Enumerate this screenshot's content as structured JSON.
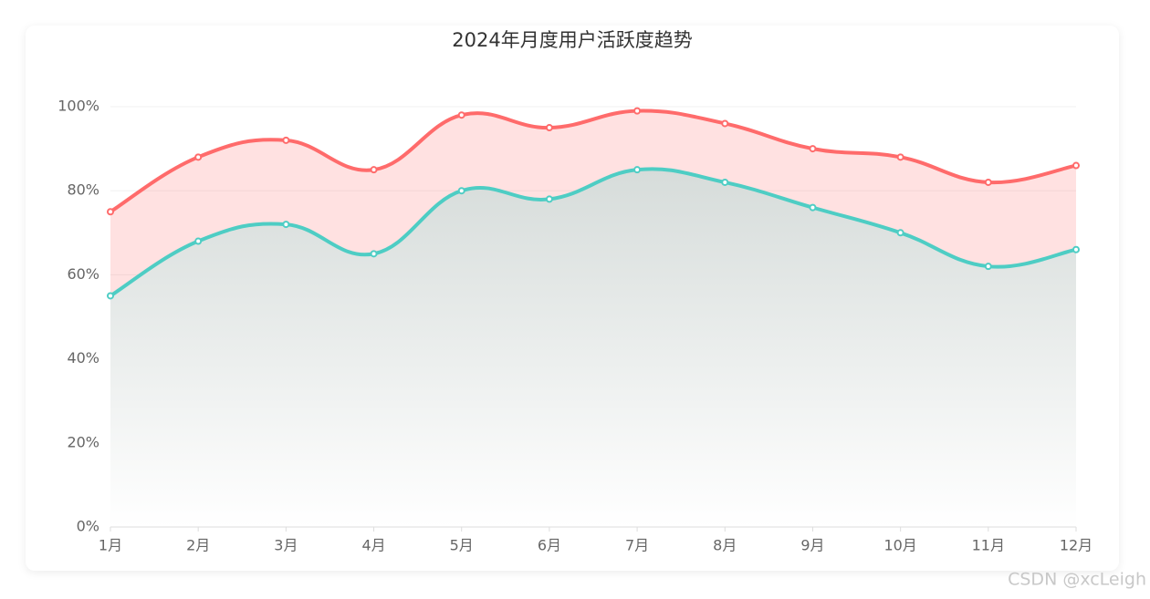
{
  "chart_data": {
    "type": "line",
    "title": "2024年月度用户活跃度趋势",
    "categories": [
      "1月",
      "2月",
      "3月",
      "4月",
      "5月",
      "6月",
      "7月",
      "8月",
      "9月",
      "10月",
      "11月",
      "12月"
    ],
    "series": [
      {
        "color": "#ff6b6b",
        "values": [
          75,
          88,
          92,
          85,
          98,
          95,
          99,
          96,
          90,
          88,
          82,
          86
        ]
      },
      {
        "color": "#4ecdc4",
        "values": [
          55,
          68,
          72,
          65,
          80,
          78,
          85,
          82,
          76,
          70,
          62,
          66
        ]
      }
    ],
    "ylim": [
      0,
      100
    ],
    "yticks": [
      {
        "value": 0,
        "label": "0%"
      },
      {
        "value": 20,
        "label": "20%"
      },
      {
        "value": 40,
        "label": "40%"
      },
      {
        "value": 60,
        "label": "60%"
      },
      {
        "value": 80,
        "label": "80%"
      },
      {
        "value": 100,
        "label": "100%"
      }
    ],
    "grid": true,
    "smooth": true,
    "area": true
  },
  "watermark": "CSDN @xcLeigh"
}
